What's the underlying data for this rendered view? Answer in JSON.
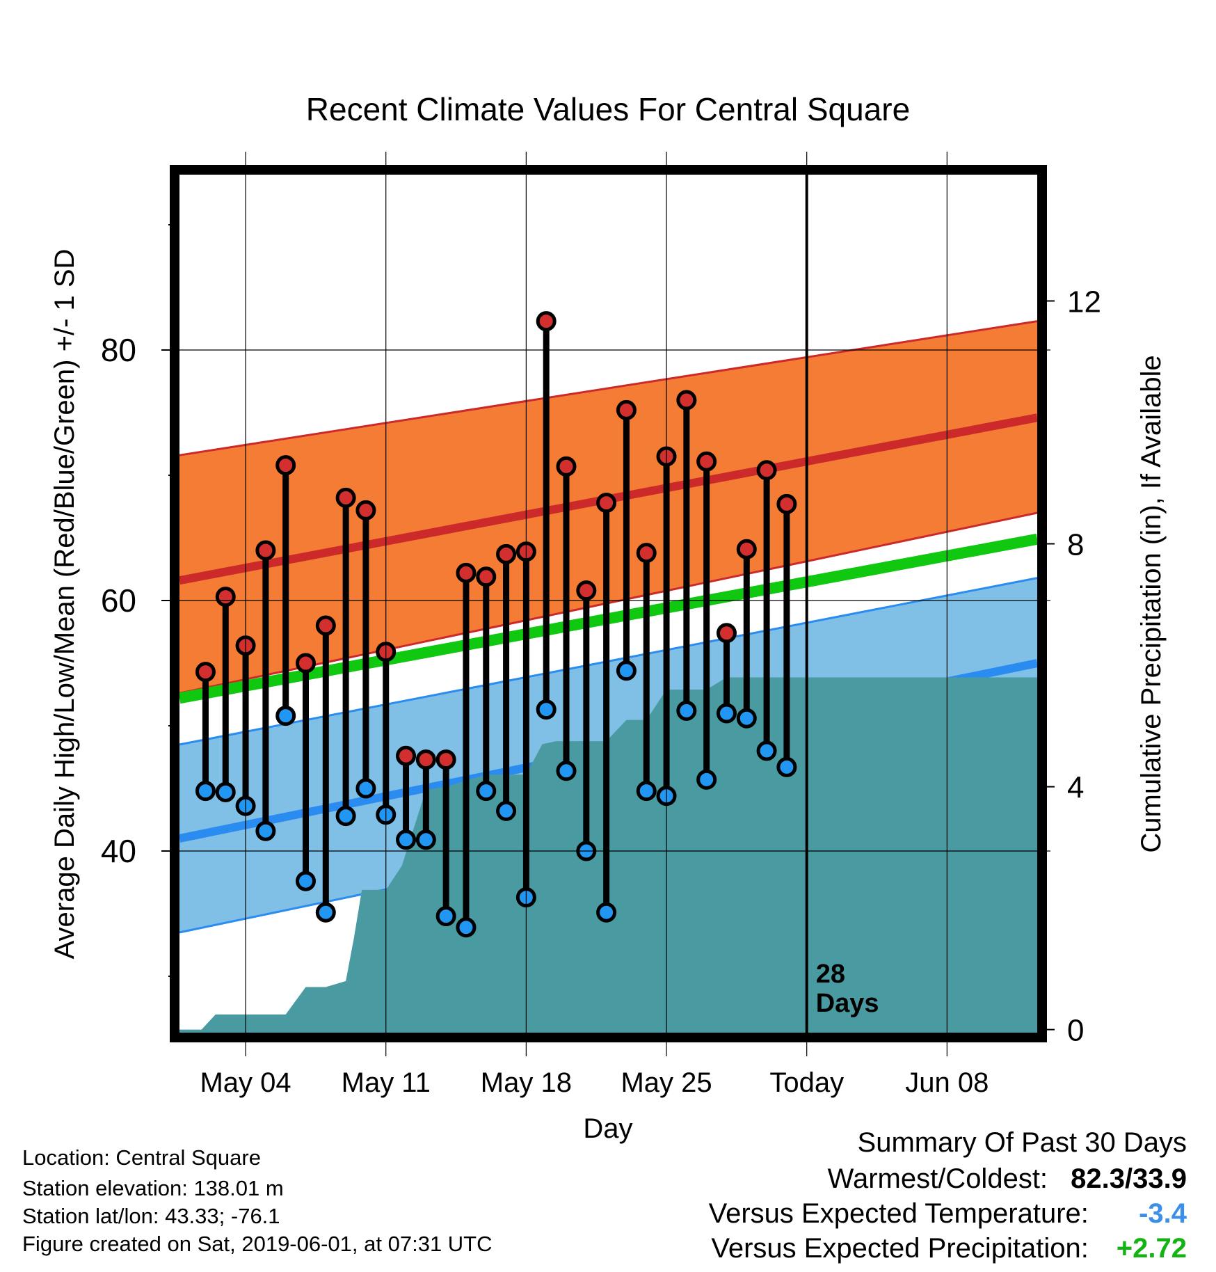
{
  "chart_data": {
    "type": "line",
    "title": "Recent Climate Values For Central Square",
    "xlabel": "Day",
    "ylabel": "Average Daily High/Low/Mean (Red/Blue/Green) +/- 1 SD",
    "y2label": "Cumulative Precipitation (in), If Available",
    "x_tick_labels": [
      "May 04",
      "May 11",
      "May 18",
      "May 25",
      "Today",
      "Jun 08"
    ],
    "x_tick_days": [
      4,
      11,
      18,
      25,
      32,
      39
    ],
    "xlim": [
      0.7,
      43.5
    ],
    "ylim": [
      25.5,
      94
    ],
    "y_ticks": [
      40,
      60,
      80
    ],
    "y2lim": [
      -0.05,
      14.08
    ],
    "y2_ticks": [
      0,
      4,
      8,
      12
    ],
    "grid": true,
    "today_day": 32,
    "today_annotation": "28\nDays",
    "colors": {
      "high_band": "#f47c34",
      "high_line": "#cc2a2a",
      "low_band": "#80bfe6",
      "low_line": "#2a8cf0",
      "mean_line": "#10c810",
      "precip": "#4a9ba1",
      "high_marker": "#d32f2f",
      "low_marker": "#2196f3"
    },
    "normals": {
      "day_start": 0.7,
      "day_end": 43.5,
      "high_mean": [
        61.6,
        74.6
      ],
      "high_sd": [
        71.6,
        82.3
      ],
      "high_minus_sd": [
        52.6,
        67.0
      ],
      "low_mean": [
        41.0,
        55.0
      ],
      "low_plus_sd": [
        48.5,
        61.8
      ],
      "low_minus_sd": [
        33.5,
        47.8
      ],
      "mean": [
        52.2,
        64.9
      ]
    },
    "series": [
      {
        "name": "High",
        "x": [
          2,
          3,
          4,
          5,
          6,
          7,
          8,
          9,
          10,
          11,
          12,
          13,
          14,
          15,
          16,
          17,
          18,
          19,
          20,
          21,
          22,
          23,
          24,
          25,
          26,
          27,
          28,
          29,
          30,
          31
        ],
        "values": [
          54.3,
          60.3,
          56.4,
          64.0,
          70.8,
          55.0,
          58.0,
          68.2,
          67.2,
          55.9,
          47.6,
          47.3,
          47.3,
          62.2,
          61.9,
          63.7,
          63.9,
          82.3,
          70.7,
          60.8,
          67.8,
          75.2,
          63.8,
          71.5,
          76.0,
          71.1,
          57.4,
          64.1,
          70.4,
          67.7
        ]
      },
      {
        "name": "Low",
        "x": [
          2,
          3,
          4,
          5,
          6,
          7,
          8,
          9,
          10,
          11,
          12,
          13,
          14,
          15,
          16,
          17,
          18,
          19,
          20,
          21,
          22,
          23,
          24,
          25,
          26,
          27,
          28,
          29,
          30,
          31
        ],
        "values": [
          44.8,
          44.7,
          43.6,
          41.6,
          50.8,
          37.6,
          35.1,
          42.8,
          45.0,
          42.9,
          40.9,
          40.9,
          34.8,
          33.9,
          44.8,
          43.2,
          36.3,
          51.3,
          46.4,
          40.0,
          35.1,
          54.4,
          44.8,
          44.4,
          51.2,
          45.7,
          51.0,
          50.6,
          48.0,
          46.7
        ]
      }
    ],
    "precip_cumulative": {
      "x": [
        0.7,
        1.8,
        2.5,
        4.0,
        5.0,
        6.0,
        7.0,
        8.0,
        9.0,
        9.4,
        9.8,
        11.0,
        11.8,
        13.0,
        14.0,
        15.0,
        16.0,
        17.0,
        18.0,
        18.8,
        19.5,
        20.0,
        21.0,
        22.0,
        23.0,
        24.0,
        25.0,
        26.0,
        27.0,
        28.0,
        29.0,
        32.0,
        43.5
      ],
      "values": [
        0.0,
        0.0,
        0.25,
        0.25,
        0.25,
        0.25,
        0.7,
        0.7,
        0.8,
        1.5,
        2.3,
        2.3,
        2.7,
        3.95,
        4.0,
        4.1,
        4.2,
        4.2,
        4.2,
        4.7,
        4.75,
        4.75,
        4.75,
        4.75,
        5.1,
        5.1,
        5.6,
        5.6,
        5.6,
        5.8,
        5.8,
        5.8,
        5.8
      ]
    }
  },
  "info": {
    "location": "Location: Central Square",
    "elevation": "Station elevation: 138.01 m",
    "latlon": "Station lat/lon: 43.33; -76.1",
    "created": "Figure created on Sat, 2019-06-01, at 07:31 UTC"
  },
  "summary": {
    "title": "Summary Of Past 30 Days",
    "warmest_coldest_label": "Warmest/Coldest:",
    "warmest_coldest_value": "82.3/33.9",
    "temp_label": "Versus Expected Temperature:",
    "temp_value": "-3.4",
    "temp_color": "#3b8fe8",
    "precip_label": "Versus Expected Precipitation:",
    "precip_value": "+2.72",
    "precip_color": "#12b312"
  }
}
